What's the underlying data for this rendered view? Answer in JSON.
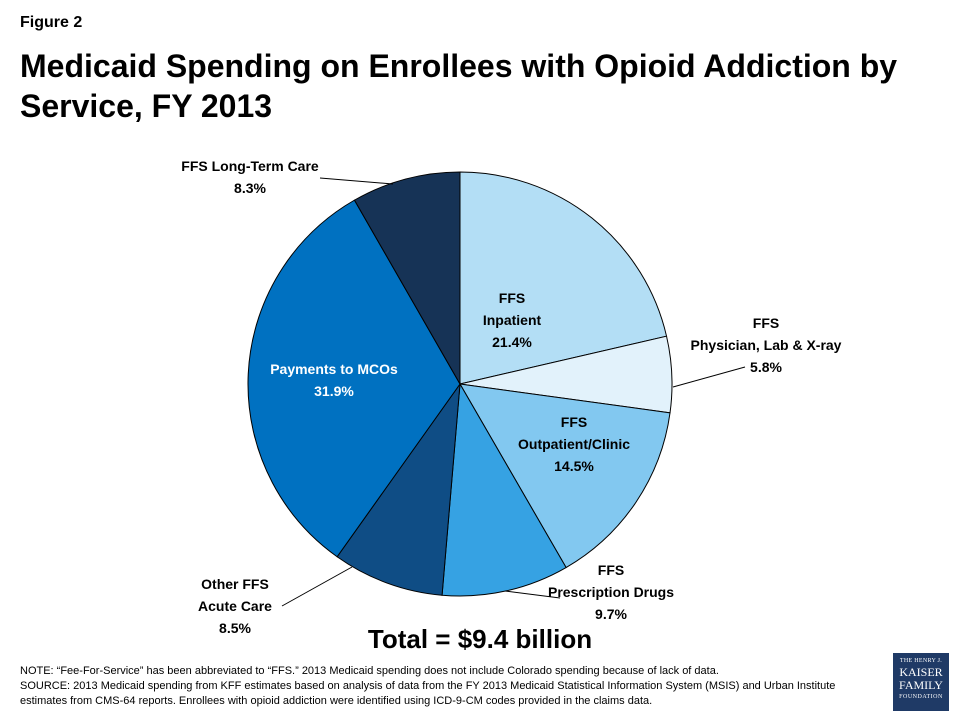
{
  "figure_label": "Figure 2",
  "title": "Medicaid Spending on Enrollees with Opioid Addiction by Service, FY 2013",
  "total": "Total = $9.4 billion",
  "notes": {
    "note": "NOTE:  “Fee-For-Service” has been abbreviated to “FFS.” 2013 Medicaid spending does not include Colorado spending because of lack of data.",
    "source": "SOURCE:  2013 Medicaid spending from KFF estimates based on analysis of data from the FY 2013 Medicaid Statistical Information System (MSIS) and Urban Institute estimates from CMS-64 reports. Enrollees with opioid addiction were identified using ICD-9-CM codes provided in the claims data."
  },
  "logo": {
    "line1": "THE HENRY J.",
    "line2": "KAISER",
    "line3": "FAMILY",
    "line4": "FOUNDATION"
  },
  "chart_data": {
    "type": "pie",
    "start": "top, clockwise",
    "slices": [
      {
        "label": [
          "FFS",
          "Inpatient"
        ],
        "value_text": "21.4%",
        "value": 21.4,
        "color": "#b3def5"
      },
      {
        "label": [
          "FFS",
          "Physician, Lab & X-ray"
        ],
        "value_text": "5.8%",
        "value": 5.8,
        "color": "#e2f2fb"
      },
      {
        "label": [
          "FFS",
          "Outpatient/Clinic"
        ],
        "value_text": "14.5%",
        "value": 14.5,
        "color": "#82c8f0"
      },
      {
        "label": [
          "FFS",
          "Prescription Drugs"
        ],
        "value_text": "9.7%",
        "value": 9.7,
        "color": "#36a2e3"
      },
      {
        "label": [
          "Other FFS",
          "Acute Care"
        ],
        "value_text": "8.5%",
        "value": 8.5,
        "color": "#0f4d85"
      },
      {
        "label": [
          "Payments to MCOs"
        ],
        "value_text": "31.9%",
        "value": 31.9,
        "color": "#0071c1"
      },
      {
        "label": [
          "FFS Long-Term Care"
        ],
        "value_text": "8.3%",
        "value": 8.3,
        "color": "#163356"
      }
    ]
  }
}
